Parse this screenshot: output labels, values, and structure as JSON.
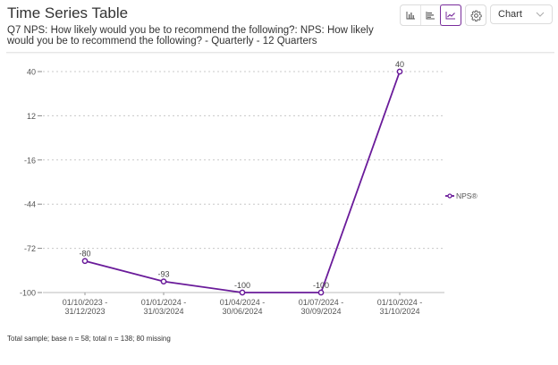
{
  "header": {
    "title": "Time Series Table",
    "subtitle": "Q7 NPS: How likely would you be to recommend the following?: NPS: How likely would you be to recommend the following? - Quarterly - 12 Quarters"
  },
  "toolbar": {
    "view_buttons": [
      {
        "name": "column-chart",
        "icon": "bar-chart-icon",
        "active": false
      },
      {
        "name": "bar-chart",
        "icon": "horizontal-bar-chart-icon",
        "active": false
      },
      {
        "name": "line-chart",
        "icon": "line-chart-icon",
        "active": true
      }
    ],
    "settings_icon": "gear-icon",
    "view_select": {
      "value": "Chart",
      "icon": "chevron-down-icon"
    }
  },
  "colors": {
    "series": "#6a1b9a",
    "accent": "#7a2d9c",
    "grid": "#c8c8c8",
    "axis_text": "#555555"
  },
  "chart_data": {
    "type": "line",
    "title": "",
    "xlabel": "",
    "ylabel": "",
    "categories": [
      "01/10/2023 - 31/12/2023",
      "01/01/2024 - 31/03/2024",
      "01/04/2024 - 30/06/2024",
      "01/07/2024 - 30/09/2024",
      "01/10/2024 - 31/10/2024"
    ],
    "category_lines": [
      [
        "01/10/2023 -",
        "31/12/2023"
      ],
      [
        "01/01/2024 -",
        "31/03/2024"
      ],
      [
        "01/04/2024 -",
        "30/06/2024"
      ],
      [
        "01/07/2024 -",
        "30/09/2024"
      ],
      [
        "01/10/2024 -",
        "31/10/2024"
      ]
    ],
    "series": [
      {
        "name": "NPS®",
        "values": [
          -80,
          -93,
          -100,
          -100,
          40
        ],
        "data_labels": [
          "-80",
          "-93",
          "-100",
          "-100",
          "40"
        ]
      }
    ],
    "yticks": [
      40,
      12,
      -16,
      -44,
      -72,
      -100
    ],
    "ylim": [
      -100,
      40
    ],
    "grid": true,
    "legend_position": "right"
  },
  "footer": {
    "note": "Total sample; base n = 58; total n = 138; 80 missing"
  }
}
